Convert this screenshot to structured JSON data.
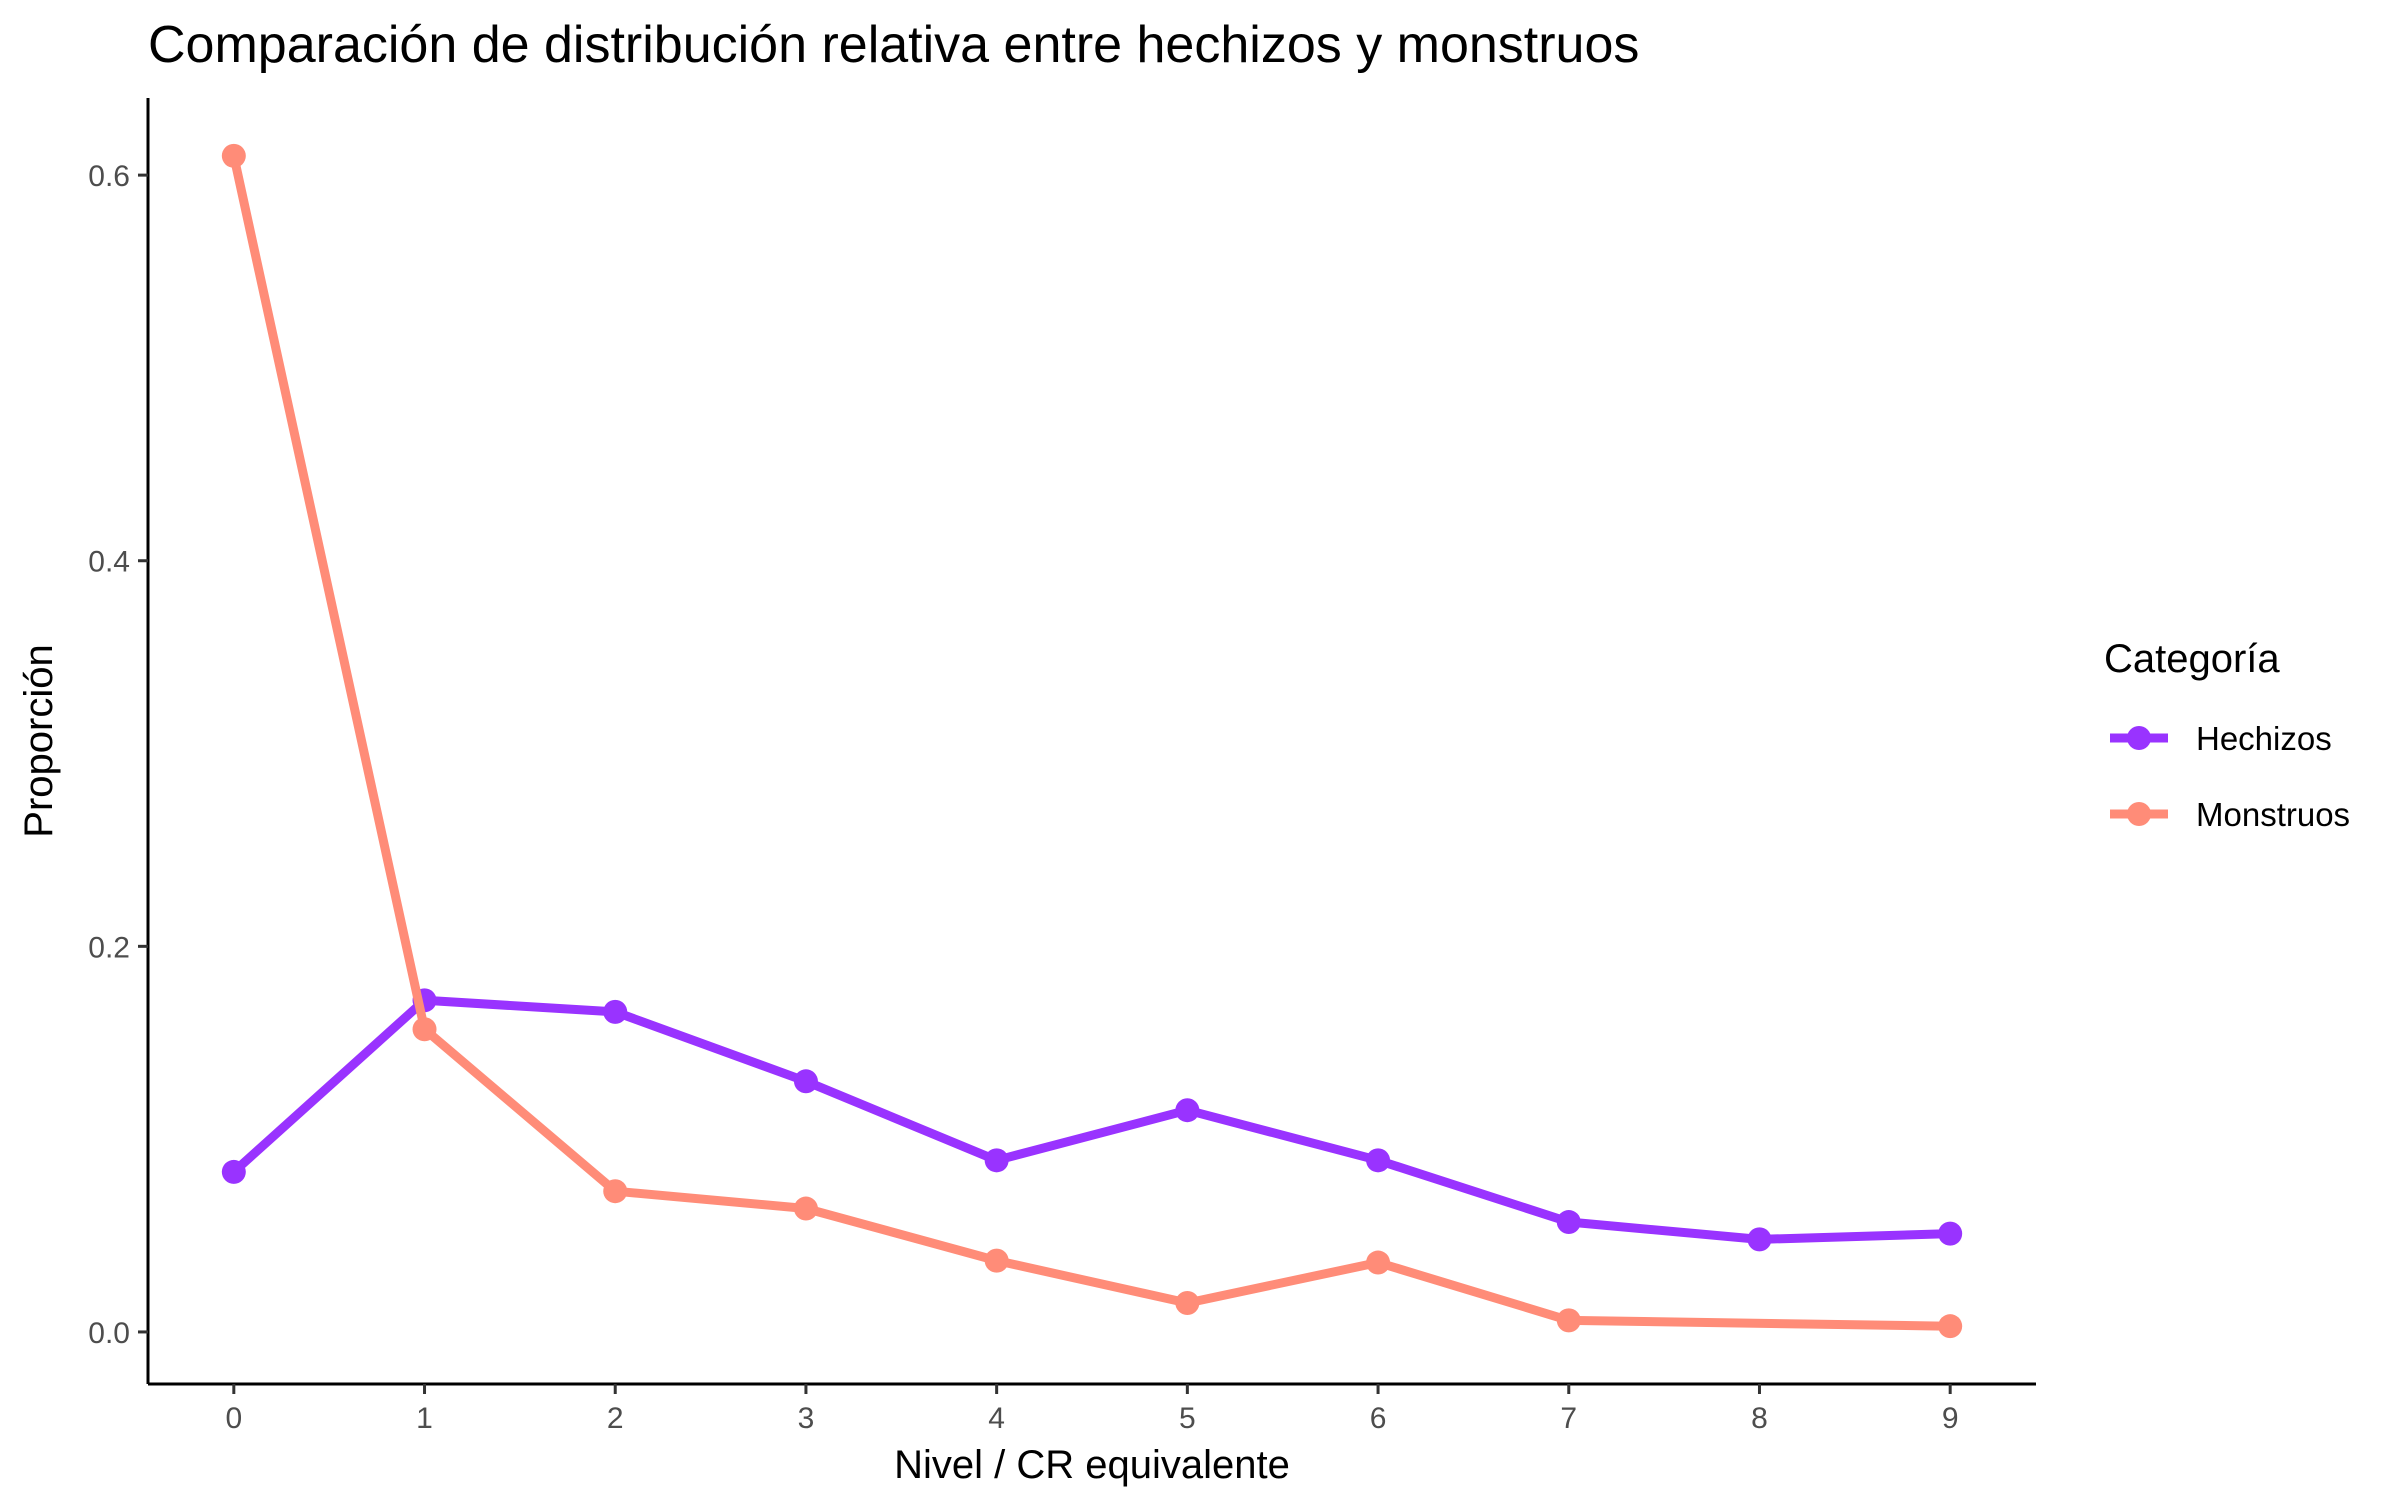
{
  "chart_data": {
    "type": "line",
    "title": "Comparación de distribución relativa entre hechizos y monstruos",
    "xlabel": "Nivel / CR equivalente",
    "ylabel": "Proporción",
    "x": [
      0,
      1,
      2,
      3,
      4,
      5,
      6,
      7,
      8,
      9
    ],
    "xlim": [
      -0.45,
      9.45
    ],
    "ylim": [
      -0.027,
      0.64
    ],
    "x_ticks": [
      "0",
      "1",
      "2",
      "3",
      "4",
      "5",
      "6",
      "7",
      "8",
      "9"
    ],
    "y_ticks": [
      0.0,
      0.2,
      0.4,
      0.6
    ],
    "y_tick_labels": [
      "0.0",
      "0.2",
      "0.4",
      "0.6"
    ],
    "grid": false,
    "legend_title": "Categoría",
    "legend_position": "right",
    "series": [
      {
        "name": "Hechizos",
        "color": "#9933FF",
        "values": [
          0.083,
          0.172,
          0.166,
          0.13,
          0.089,
          0.115,
          0.089,
          0.057,
          0.048,
          0.051
        ]
      },
      {
        "name": "Monstruos",
        "color": "#FF8C78",
        "values": [
          0.61,
          0.157,
          0.073,
          0.064,
          0.037,
          0.015,
          0.036,
          0.006,
          null,
          0.003
        ]
      }
    ]
  }
}
